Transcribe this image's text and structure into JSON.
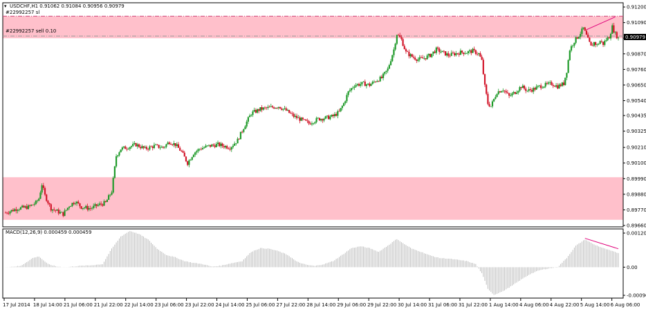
{
  "chart_data": [
    {
      "type": "candlestick",
      "symbol_header": "USDCHF,H1  0.91062  0.91084  0.90956  0.90979",
      "current_price_label": "0.90979",
      "order_labels": {
        "stop_loss": "#22992257 sl",
        "sell_order": "#22992257 sell 0.10"
      },
      "ylim": [
        0.8966,
        0.9122
      ],
      "y_ticks": [
        "0.91200",
        "0.91090",
        "0.90980",
        "0.90870",
        "0.90760",
        "0.90650",
        "0.90540",
        "0.90435",
        "0.90325",
        "0.90210",
        "0.90100",
        "0.89990",
        "0.89880",
        "0.89770",
        "0.89660"
      ],
      "x_ticks": [
        "17 Jul 2014",
        "18 Jul 14:00",
        "21 Jul 06:00",
        "21 Jul 22:00",
        "22 Jul 14:00",
        "23 Jul 06:00",
        "23 Jul 22:00",
        "24 Jul 14:00",
        "25 Jul 06:00",
        "27 Jul 22:00",
        "28 Jul 14:00",
        "29 Jul 06:00",
        "29 Jul 22:00",
        "30 Jul 14:00",
        "31 Jul 06:00",
        "31 Jul 22:00",
        "1 Aug 14:00",
        "4 Aug 06:00",
        "4 Aug 22:00",
        "5 Aug 14:00",
        "6 Aug 06:00"
      ],
      "zones": [
        {
          "name": "supply",
          "y_from": 0.9098,
          "y_to": 0.91135,
          "color": "#ffc0cb"
        },
        {
          "name": "demand",
          "y_from": 0.897,
          "y_to": 0.9,
          "color": "#ffc0cb"
        }
      ],
      "levels": [
        {
          "name": "stop_loss",
          "value": 0.91135,
          "color": "#d0467a",
          "style": "dash-dot"
        },
        {
          "name": "entry",
          "value": 0.90995,
          "color": "#9a9a9a",
          "style": "dash-dot"
        }
      ],
      "close_path": [
        [
          0,
          0.8975
        ],
        [
          8,
          0.8978
        ],
        [
          15,
          0.8979
        ],
        [
          20,
          0.8982
        ],
        [
          22,
          0.8985
        ],
        [
          24,
          0.8995
        ],
        [
          26,
          0.8987
        ],
        [
          30,
          0.8978
        ],
        [
          34,
          0.8976
        ],
        [
          38,
          0.8974
        ],
        [
          42,
          0.898
        ],
        [
          46,
          0.8983
        ],
        [
          50,
          0.8979
        ],
        [
          56,
          0.8978
        ],
        [
          60,
          0.898
        ],
        [
          66,
          0.8982
        ],
        [
          70,
          0.899
        ],
        [
          73,
          0.9015
        ],
        [
          76,
          0.902
        ],
        [
          80,
          0.9021
        ],
        [
          86,
          0.9023
        ],
        [
          92,
          0.902
        ],
        [
          98,
          0.9022
        ],
        [
          104,
          0.9021
        ],
        [
          108,
          0.9025
        ],
        [
          112,
          0.9023
        ],
        [
          116,
          0.9018
        ],
        [
          120,
          0.901
        ],
        [
          124,
          0.9017
        ],
        [
          128,
          0.902
        ],
        [
          134,
          0.9022
        ],
        [
          140,
          0.9023
        ],
        [
          148,
          0.9021
        ],
        [
          153,
          0.9026
        ],
        [
          157,
          0.9035
        ],
        [
          162,
          0.9045
        ],
        [
          168,
          0.9048
        ],
        [
          174,
          0.9049
        ],
        [
          180,
          0.905
        ],
        [
          185,
          0.9047
        ],
        [
          190,
          0.9043
        ],
        [
          196,
          0.904
        ],
        [
          200,
          0.9038
        ],
        [
          206,
          0.9041
        ],
        [
          212,
          0.9042
        ],
        [
          216,
          0.9043
        ],
        [
          220,
          0.9046
        ],
        [
          223,
          0.9052
        ],
        [
          226,
          0.906
        ],
        [
          230,
          0.9065
        ],
        [
          236,
          0.9066
        ],
        [
          240,
          0.9065
        ],
        [
          244,
          0.9068
        ],
        [
          248,
          0.907
        ],
        [
          252,
          0.9076
        ],
        [
          256,
          0.909
        ],
        [
          258,
          0.9101
        ],
        [
          261,
          0.9097
        ],
        [
          264,
          0.9088
        ],
        [
          268,
          0.9085
        ],
        [
          272,
          0.9083
        ],
        [
          276,
          0.9084
        ],
        [
          280,
          0.9086
        ],
        [
          284,
          0.909
        ],
        [
          288,
          0.9088
        ],
        [
          292,
          0.9086
        ],
        [
          296,
          0.9087
        ],
        [
          300,
          0.9088
        ],
        [
          304,
          0.9088
        ],
        [
          308,
          0.9089
        ],
        [
          312,
          0.9087
        ],
        [
          314,
          0.9082
        ],
        [
          316,
          0.9064
        ],
        [
          318,
          0.9052
        ],
        [
          320,
          0.905
        ],
        [
          324,
          0.906
        ],
        [
          328,
          0.9062
        ],
        [
          332,
          0.9057
        ],
        [
          336,
          0.906
        ],
        [
          340,
          0.9064
        ],
        [
          344,
          0.9061
        ],
        [
          348,
          0.9062
        ],
        [
          352,
          0.9064
        ],
        [
          356,
          0.9065
        ],
        [
          360,
          0.9066
        ],
        [
          364,
          0.9064
        ],
        [
          368,
          0.9066
        ],
        [
          370,
          0.9075
        ],
        [
          372,
          0.909
        ],
        [
          375,
          0.9096
        ],
        [
          378,
          0.91
        ],
        [
          381,
          0.9105
        ],
        [
          384,
          0.9097
        ],
        [
          386,
          0.9092
        ],
        [
          388,
          0.9095
        ],
        [
          390,
          0.9093
        ],
        [
          392,
          0.9096
        ],
        [
          394,
          0.9094
        ],
        [
          396,
          0.9097
        ],
        [
          398,
          0.9099
        ],
        [
          400,
          0.9106
        ],
        [
          402,
          0.9101
        ],
        [
          404,
          0.90979
        ]
      ],
      "trendline_price": {
        "from": [
          383,
          0.9104
        ],
        "to": [
          402,
          0.9113
        ],
        "color": "#e0007a"
      },
      "indicator": {
        "type": "macd",
        "label": "MACD(12,26,9) 0.000459 0.000459",
        "ylim": [
          -0.00096,
          0.0012
        ],
        "y_ticks": [
          "0.001203",
          "0.00",
          "-0.000964"
        ],
        "histogram_path": [
          [
            0,
            0.0
          ],
          [
            10,
            4e-05
          ],
          [
            18,
            0.0003
          ],
          [
            22,
            0.00035
          ],
          [
            28,
            0.0001
          ],
          [
            34,
            2e-05
          ],
          [
            40,
            0.0
          ],
          [
            48,
            4e-05
          ],
          [
            56,
            6e-05
          ],
          [
            64,
            0.0001
          ],
          [
            70,
            0.0006
          ],
          [
            76,
            0.001
          ],
          [
            82,
            0.00118
          ],
          [
            88,
            0.00108
          ],
          [
            94,
            0.0009
          ],
          [
            100,
            0.0006
          ],
          [
            106,
            0.0004
          ],
          [
            112,
            0.00032
          ],
          [
            118,
            0.0002
          ],
          [
            124,
            0.00014
          ],
          [
            130,
            0.0001
          ],
          [
            136,
            2e-05
          ],
          [
            142,
            5e-05
          ],
          [
            148,
            0.00012
          ],
          [
            156,
            0.0002
          ],
          [
            162,
            0.0005
          ],
          [
            168,
            0.00062
          ],
          [
            174,
            0.0006
          ],
          [
            180,
            0.00052
          ],
          [
            186,
            0.0004
          ],
          [
            192,
            0.00018
          ],
          [
            198,
            8e-05
          ],
          [
            204,
            4e-05
          ],
          [
            210,
            0.0001
          ],
          [
            216,
            0.0002
          ],
          [
            222,
            0.0004
          ],
          [
            228,
            0.00062
          ],
          [
            234,
            0.00068
          ],
          [
            240,
            0.00062
          ],
          [
            246,
            0.0005
          ],
          [
            252,
            0.0007
          ],
          [
            258,
            0.00092
          ],
          [
            262,
            0.00078
          ],
          [
            268,
            0.0006
          ],
          [
            274,
            0.0005
          ],
          [
            280,
            0.00038
          ],
          [
            286,
            0.0003
          ],
          [
            292,
            0.00028
          ],
          [
            298,
            0.00024
          ],
          [
            304,
            0.0002
          ],
          [
            310,
            0.0001
          ],
          [
            314,
            -0.0002
          ],
          [
            318,
            -0.0007
          ],
          [
            322,
            -0.0009
          ],
          [
            328,
            -0.00078
          ],
          [
            334,
            -0.0006
          ],
          [
            340,
            -0.0004
          ],
          [
            346,
            -0.00022
          ],
          [
            352,
            -0.0001
          ],
          [
            358,
            -4e-05
          ],
          [
            364,
            0.0
          ],
          [
            370,
            0.0003
          ],
          [
            376,
            0.0007
          ],
          [
            382,
            0.0009
          ],
          [
            388,
            0.00074
          ],
          [
            394,
            0.00062
          ],
          [
            400,
            0.00052
          ],
          [
            404,
            0.00046
          ]
        ],
        "divergence_line": {
          "from": [
            382,
            0.00094
          ],
          "to": [
            404,
            0.0006
          ],
          "color": "#e0007a"
        }
      }
    }
  ]
}
